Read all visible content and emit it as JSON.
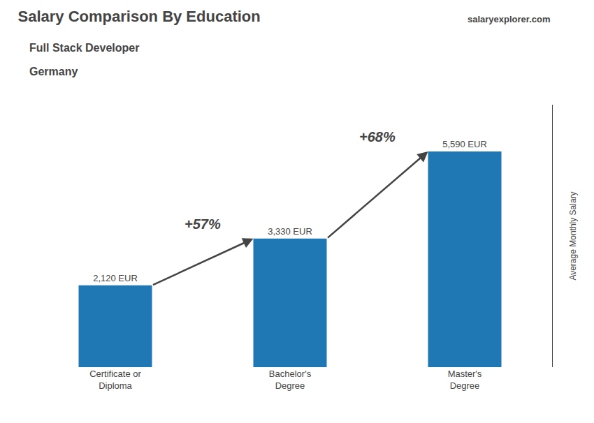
{
  "chart_data": {
    "type": "bar",
    "title": "Salary Comparison By Education",
    "subtitle": [
      "Full Stack Developer",
      "Germany"
    ],
    "source": "salaryexplorer.com",
    "categories": [
      "Certificate or\nDiploma",
      "Bachelor's\nDegree",
      "Master's\nDegree"
    ],
    "values": [
      2120,
      3330,
      5590
    ],
    "value_labels": [
      "2,120 EUR",
      "3,330 EUR",
      "5,590 EUR"
    ],
    "data_labels": true,
    "annotations": [
      "+57%",
      "+68%"
    ],
    "ylabel": "Average Monthly Salary",
    "ylim": [
      0,
      6800
    ],
    "grid": false,
    "tick_labels": "x"
  }
}
